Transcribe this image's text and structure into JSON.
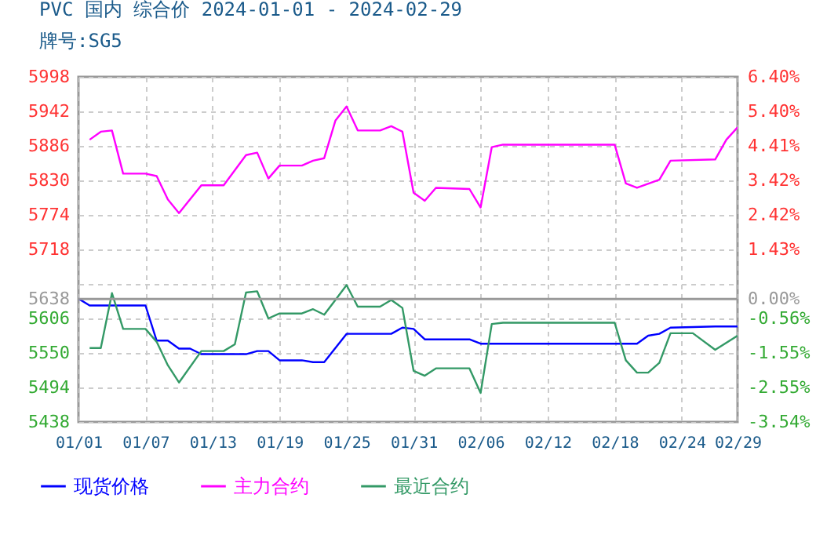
{
  "chart_data": {
    "type": "line",
    "title": "PVC 国内 综合价 2024-01-01 - 2024-02-29",
    "subtitle": "牌号:SG5",
    "xlim": [
      "2024-01-01",
      "2024-02-29"
    ],
    "xticks": [
      {
        "value": "2024-01-01",
        "label": "01/01"
      },
      {
        "value": "2024-01-07",
        "label": "01/07"
      },
      {
        "value": "2024-01-13",
        "label": "01/13"
      },
      {
        "value": "2024-01-19",
        "label": "01/19"
      },
      {
        "value": "2024-01-25",
        "label": "01/25"
      },
      {
        "value": "2024-01-31",
        "label": "01/31"
      },
      {
        "value": "2024-02-06",
        "label": "02/06"
      },
      {
        "value": "2024-02-12",
        "label": "02/12"
      },
      {
        "value": "2024-02-18",
        "label": "02/18"
      },
      {
        "value": "2024-02-24",
        "label": "02/24"
      },
      {
        "value": "2024-02-29",
        "label": "02/29"
      }
    ],
    "ylim": [
      5438,
      5998
    ],
    "yticks": [
      5998,
      5942,
      5886,
      5830,
      5774,
      5718,
      {
        "value": 5662,
        "label": null
      },
      5638,
      5606,
      5550,
      5494,
      5438
    ],
    "y2lim": [
      -3.54,
      6.4
    ],
    "y2ticks": [
      {
        "value": 6.4,
        "label": "6.40%"
      },
      {
        "value": 5.4,
        "label": "5.40%"
      },
      {
        "value": 4.41,
        "label": "4.41%"
      },
      {
        "value": 3.42,
        "label": "3.42%"
      },
      {
        "value": 2.42,
        "label": "2.42%"
      },
      {
        "value": 1.43,
        "label": "1.43%"
      },
      {
        "value": 0,
        "label": "0.00%"
      },
      {
        "value": -0.56,
        "label": "-0.56%"
      },
      {
        "value": -1.55,
        "label": "-1.55%"
      },
      {
        "value": -2.55,
        "label": "-2.55%"
      },
      {
        "value": -3.54,
        "label": "-3.54%"
      }
    ],
    "ref_lines": [
      {
        "axis": "y2",
        "value": 0,
        "color": "#999999"
      }
    ],
    "grid": true,
    "legend": "bottom",
    "line_style": "solid",
    "series": [
      {
        "name": "现货价格",
        "color": "#0000ff",
        "x": [
          "2024-01-01",
          "2024-01-02",
          "2024-01-07",
          "2024-01-08",
          "2024-01-09",
          "2024-01-10",
          "2024-01-11",
          "2024-01-12",
          "2024-01-16",
          "2024-01-17",
          "2024-01-18",
          "2024-01-19",
          "2024-01-21",
          "2024-01-22",
          "2024-01-23",
          "2024-01-25",
          "2024-01-29",
          "2024-01-30",
          "2024-01-31",
          "2024-02-01",
          "2024-02-05",
          "2024-02-06",
          "2024-02-20",
          "2024-02-21",
          "2024-02-22",
          "2024-02-23",
          "2024-02-27",
          "2024-02-29"
        ],
        "values": [
          5638,
          5627,
          5627,
          5570,
          5570,
          5557,
          5557,
          5548,
          5548,
          5553,
          5553,
          5538,
          5538,
          5535,
          5535,
          5581,
          5581,
          5591,
          5589,
          5572,
          5572,
          5565,
          5565,
          5578,
          5581,
          5591,
          5593,
          5593
        ]
      },
      {
        "name": "主力合约",
        "color": "#ff00ff",
        "x": [
          "2024-01-02",
          "2024-01-03",
          "2024-01-04",
          "2024-01-05",
          "2024-01-07",
          "2024-01-08",
          "2024-01-09",
          "2024-01-10",
          "2024-01-12",
          "2024-01-14",
          "2024-01-16",
          "2024-01-17",
          "2024-01-18",
          "2024-01-19",
          "2024-01-21",
          "2024-01-22",
          "2024-01-23",
          "2024-01-24",
          "2024-01-25",
          "2024-01-26",
          "2024-01-28",
          "2024-01-29",
          "2024-01-30",
          "2024-01-31",
          "2024-02-01",
          "2024-02-02",
          "2024-02-05",
          "2024-02-06",
          "2024-02-07",
          "2024-02-08",
          "2024-02-18",
          "2024-02-19",
          "2024-02-20",
          "2024-02-22",
          "2024-02-23",
          "2024-02-27",
          "2024-02-28",
          "2024-02-29"
        ],
        "values": [
          5896,
          5909,
          5911,
          5841,
          5841,
          5837,
          5799,
          5777,
          5822,
          5822,
          5871,
          5875,
          5833,
          5854,
          5854,
          5862,
          5866,
          5927,
          5950,
          5911,
          5911,
          5918,
          5909,
          5810,
          5797,
          5818,
          5816,
          5786,
          5884,
          5888,
          5888,
          5825,
          5818,
          5831,
          5862,
          5864,
          5896,
          5916
        ]
      },
      {
        "name": "最近合约",
        "color": "#339966",
        "x": [
          "2024-01-02",
          "2024-01-03",
          "2024-01-04",
          "2024-01-05",
          "2024-01-07",
          "2024-01-08",
          "2024-01-09",
          "2024-01-10",
          "2024-01-12",
          "2024-01-14",
          "2024-01-15",
          "2024-01-16",
          "2024-01-17",
          "2024-01-18",
          "2024-01-19",
          "2024-01-21",
          "2024-01-22",
          "2024-01-23",
          "2024-01-24",
          "2024-01-25",
          "2024-01-26",
          "2024-01-28",
          "2024-01-29",
          "2024-01-30",
          "2024-01-31",
          "2024-02-01",
          "2024-02-02",
          "2024-02-05",
          "2024-02-06",
          "2024-02-07",
          "2024-02-08",
          "2024-02-18",
          "2024-02-19",
          "2024-02-20",
          "2024-02-21",
          "2024-02-22",
          "2024-02-23",
          "2024-02-25",
          "2024-02-27",
          "2024-02-29"
        ],
        "values": [
          5558,
          5558,
          5647,
          5589,
          5589,
          5568,
          5530,
          5502,
          5553,
          5553,
          5564,
          5648,
          5650,
          5606,
          5614,
          5614,
          5621,
          5612,
          5636,
          5660,
          5625,
          5625,
          5636,
          5623,
          5521,
          5513,
          5525,
          5525,
          5485,
          5597,
          5599,
          5599,
          5538,
          5518,
          5518,
          5534,
          5582,
          5582,
          5555,
          5578
        ]
      }
    ]
  }
}
